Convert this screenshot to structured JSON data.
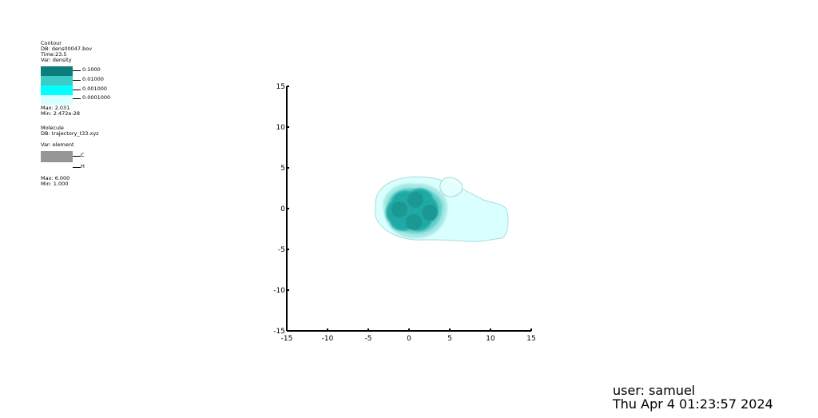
{
  "legend": {
    "contour": {
      "title": "Contour",
      "db": "DB: dens00047.bov",
      "time": "Time:23.5",
      "var": "Var: density",
      "levels": [
        {
          "label": "0.1000",
          "color": "#0b7d7b"
        },
        {
          "label": "0.01000",
          "color": "#3ccbc5"
        },
        {
          "label": "0.001000",
          "color": "#00ffff"
        },
        {
          "label": "0.0001000",
          "color": "#d6ffff"
        }
      ],
      "max": "Max: 2.031",
      "min": "Min: 2.472e-28"
    },
    "molecule": {
      "title": "Molecule",
      "db": "DB: trajectory_t33.xyz",
      "var": "Var: element",
      "elements": [
        {
          "label": "C",
          "color": "#969696"
        },
        {
          "label": "H",
          "color": "#ffffff"
        }
      ],
      "max": "Max: 6.000",
      "min": "Min: 1.000"
    }
  },
  "chart_data": {
    "type": "contour",
    "xlim": [
      -15,
      15
    ],
    "ylim": [
      -15,
      15
    ],
    "x_ticks": [
      "-15",
      "-10",
      "-5",
      "0",
      "5",
      "10",
      "15"
    ],
    "y_ticks": [
      "15",
      "10",
      "5",
      "0",
      "-5",
      "-10",
      "-15"
    ],
    "grid": false,
    "contour_levels": [
      0.1,
      0.01,
      0.001,
      0.0001
    ]
  },
  "footer": {
    "user": "user: samuel",
    "date": "Thu Apr  4 01:23:57 2024"
  }
}
